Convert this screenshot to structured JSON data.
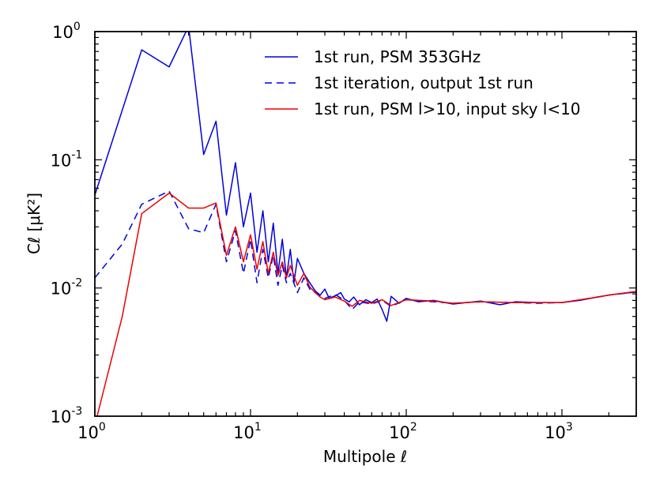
{
  "chart_data": {
    "type": "line",
    "title": "",
    "xscale": "log",
    "yscale": "log",
    "xlim": [
      1,
      3000
    ],
    "ylim": [
      0.001,
      1
    ],
    "xlabel": "Multipole ℓ",
    "ylabel": "Cℓ [μK²]",
    "x_ticks": [
      {
        "value": 1,
        "base": "10",
        "exp": "0"
      },
      {
        "value": 10,
        "base": "10",
        "exp": "1"
      },
      {
        "value": 100,
        "base": "10",
        "exp": "2"
      },
      {
        "value": 1000,
        "base": "10",
        "exp": "3"
      }
    ],
    "y_ticks": [
      {
        "value": 0.001,
        "base": "10",
        "exp": "-3"
      },
      {
        "value": 0.01,
        "base": "10",
        "exp": "-2"
      },
      {
        "value": 0.1,
        "base": "10",
        "exp": "-1"
      },
      {
        "value": 1,
        "base": "10",
        "exp": "0"
      }
    ],
    "legend_position": "top-right",
    "series": [
      {
        "name": "1st run, PSM 353GHz",
        "color": "#0000dd",
        "style": "solid",
        "points": [
          [
            1,
            0.053
          ],
          [
            2,
            0.72
          ],
          [
            3,
            0.53
          ],
          [
            4,
            1.1
          ],
          [
            5,
            0.11
          ],
          [
            6,
            0.2
          ],
          [
            7,
            0.037
          ],
          [
            8,
            0.095
          ],
          [
            9,
            0.03
          ],
          [
            10,
            0.055
          ],
          [
            11,
            0.019
          ],
          [
            12,
            0.04
          ],
          [
            13,
            0.016
          ],
          [
            14,
            0.032
          ],
          [
            15,
            0.013
          ],
          [
            16,
            0.024
          ],
          [
            17,
            0.012
          ],
          [
            18,
            0.02
          ],
          [
            19,
            0.011
          ],
          [
            20,
            0.017
          ],
          [
            22,
            0.013
          ],
          [
            24,
            0.011
          ],
          [
            26,
            0.0095
          ],
          [
            28,
            0.0088
          ],
          [
            30,
            0.0098
          ],
          [
            32,
            0.0083
          ],
          [
            35,
            0.0087
          ],
          [
            38,
            0.0092
          ],
          [
            40,
            0.0082
          ],
          [
            43,
            0.0078
          ],
          [
            46,
            0.0085
          ],
          [
            50,
            0.0074
          ],
          [
            55,
            0.0081
          ],
          [
            60,
            0.0077
          ],
          [
            65,
            0.0082
          ],
          [
            70,
            0.0068
          ],
          [
            75,
            0.0055
          ],
          [
            80,
            0.0086
          ],
          [
            90,
            0.0076
          ],
          [
            100,
            0.0083
          ],
          [
            120,
            0.0078
          ],
          [
            150,
            0.008
          ],
          [
            200,
            0.0075
          ],
          [
            300,
            0.0079
          ],
          [
            400,
            0.0074
          ],
          [
            500,
            0.0078
          ],
          [
            700,
            0.0077
          ],
          [
            1000,
            0.0077
          ],
          [
            1300,
            0.008
          ],
          [
            1600,
            0.0084
          ],
          [
            2000,
            0.0088
          ],
          [
            2500,
            0.0091
          ],
          [
            3000,
            0.0093
          ]
        ]
      },
      {
        "name": "1st iteration, output 1st run",
        "color": "#0000dd",
        "style": "dashed",
        "points": [
          [
            1,
            0.012
          ],
          [
            1.5,
            0.022
          ],
          [
            2,
            0.045
          ],
          [
            3,
            0.057
          ],
          [
            4,
            0.029
          ],
          [
            5,
            0.027
          ],
          [
            6,
            0.045
          ],
          [
            7,
            0.016
          ],
          [
            8,
            0.028
          ],
          [
            9,
            0.013
          ],
          [
            10,
            0.024
          ],
          [
            11,
            0.011
          ],
          [
            12,
            0.02
          ],
          [
            13,
            0.012
          ],
          [
            14,
            0.018
          ],
          [
            15,
            0.0105
          ],
          [
            16,
            0.015
          ],
          [
            17,
            0.011
          ],
          [
            18,
            0.013
          ],
          [
            20,
            0.0092
          ],
          [
            22,
            0.012
          ],
          [
            24,
            0.0098
          ],
          [
            26,
            0.0093
          ],
          [
            28,
            0.0086
          ],
          [
            30,
            0.0083
          ],
          [
            35,
            0.0089
          ],
          [
            40,
            0.008
          ],
          [
            45,
            0.0068
          ],
          [
            50,
            0.0078
          ],
          [
            60,
            0.0075
          ],
          [
            70,
            0.008
          ],
          [
            80,
            0.0072
          ],
          [
            100,
            0.0081
          ],
          [
            150,
            0.0078
          ],
          [
            200,
            0.0076
          ],
          [
            300,
            0.0078
          ],
          [
            500,
            0.0077
          ],
          [
            700,
            0.0076
          ],
          [
            1000,
            0.0077
          ],
          [
            1500,
            0.0083
          ],
          [
            2000,
            0.0088
          ],
          [
            3000,
            0.0093
          ]
        ]
      },
      {
        "name": "1st run, PSM l>10, input sky l<10",
        "color": "#ee0000",
        "style": "solid",
        "points": [
          [
            1,
            0.00085
          ],
          [
            1.5,
            0.006
          ],
          [
            2,
            0.038
          ],
          [
            3,
            0.055
          ],
          [
            4,
            0.042
          ],
          [
            5,
            0.042
          ],
          [
            6,
            0.046
          ],
          [
            7,
            0.018
          ],
          [
            8,
            0.03
          ],
          [
            9,
            0.016
          ],
          [
            10,
            0.026
          ],
          [
            11,
            0.014
          ],
          [
            12,
            0.023
          ],
          [
            13,
            0.013
          ],
          [
            14,
            0.019
          ],
          [
            15,
            0.0125
          ],
          [
            16,
            0.016
          ],
          [
            17,
            0.012
          ],
          [
            18,
            0.015
          ],
          [
            20,
            0.0105
          ],
          [
            22,
            0.013
          ],
          [
            24,
            0.0102
          ],
          [
            26,
            0.0092
          ],
          [
            28,
            0.0085
          ],
          [
            30,
            0.0081
          ],
          [
            35,
            0.0085
          ],
          [
            40,
            0.0079
          ],
          [
            45,
            0.0072
          ],
          [
            50,
            0.008
          ],
          [
            60,
            0.0076
          ],
          [
            70,
            0.0081
          ],
          [
            80,
            0.0073
          ],
          [
            100,
            0.0081
          ],
          [
            150,
            0.0079
          ],
          [
            200,
            0.0076
          ],
          [
            300,
            0.0078
          ],
          [
            500,
            0.0077
          ],
          [
            700,
            0.0077
          ],
          [
            1000,
            0.0077
          ],
          [
            1500,
            0.0083
          ],
          [
            2000,
            0.0088
          ],
          [
            3000,
            0.0094
          ]
        ]
      }
    ]
  }
}
